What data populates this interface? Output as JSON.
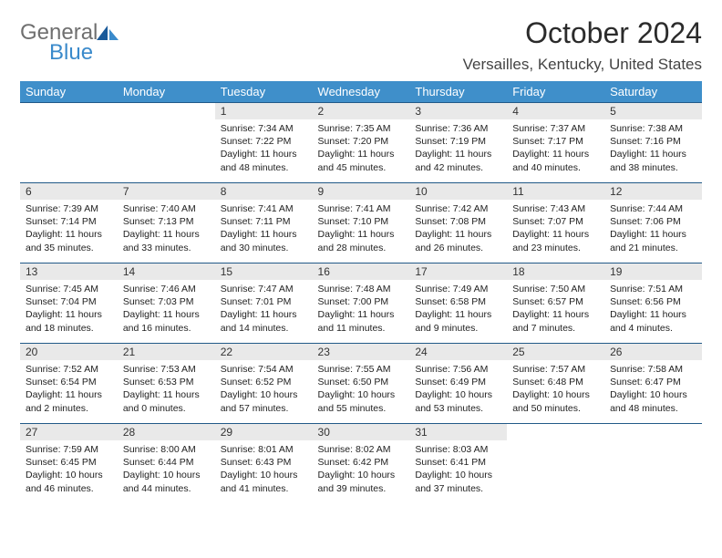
{
  "logo": {
    "general": "General",
    "blue": "Blue"
  },
  "title": "October 2024",
  "location": "Versailles, Kentucky, United States",
  "colors": {
    "header_bg": "#3f8fca",
    "header_text": "#ffffff",
    "row_border": "#225a88",
    "daynum_bg": "#e9e9e9",
    "logo_gray": "#6f6f6f",
    "logo_blue": "#3a8acb",
    "page_bg": "#ffffff",
    "body_text": "#222222"
  },
  "dayHeaders": [
    "Sunday",
    "Monday",
    "Tuesday",
    "Wednesday",
    "Thursday",
    "Friday",
    "Saturday"
  ],
  "weeks": [
    [
      {
        "n": "",
        "lines": []
      },
      {
        "n": "",
        "lines": []
      },
      {
        "n": "1",
        "lines": [
          "Sunrise: 7:34 AM",
          "Sunset: 7:22 PM",
          "Daylight: 11 hours",
          "and 48 minutes."
        ]
      },
      {
        "n": "2",
        "lines": [
          "Sunrise: 7:35 AM",
          "Sunset: 7:20 PM",
          "Daylight: 11 hours",
          "and 45 minutes."
        ]
      },
      {
        "n": "3",
        "lines": [
          "Sunrise: 7:36 AM",
          "Sunset: 7:19 PM",
          "Daylight: 11 hours",
          "and 42 minutes."
        ]
      },
      {
        "n": "4",
        "lines": [
          "Sunrise: 7:37 AM",
          "Sunset: 7:17 PM",
          "Daylight: 11 hours",
          "and 40 minutes."
        ]
      },
      {
        "n": "5",
        "lines": [
          "Sunrise: 7:38 AM",
          "Sunset: 7:16 PM",
          "Daylight: 11 hours",
          "and 38 minutes."
        ]
      }
    ],
    [
      {
        "n": "6",
        "lines": [
          "Sunrise: 7:39 AM",
          "Sunset: 7:14 PM",
          "Daylight: 11 hours",
          "and 35 minutes."
        ]
      },
      {
        "n": "7",
        "lines": [
          "Sunrise: 7:40 AM",
          "Sunset: 7:13 PM",
          "Daylight: 11 hours",
          "and 33 minutes."
        ]
      },
      {
        "n": "8",
        "lines": [
          "Sunrise: 7:41 AM",
          "Sunset: 7:11 PM",
          "Daylight: 11 hours",
          "and 30 minutes."
        ]
      },
      {
        "n": "9",
        "lines": [
          "Sunrise: 7:41 AM",
          "Sunset: 7:10 PM",
          "Daylight: 11 hours",
          "and 28 minutes."
        ]
      },
      {
        "n": "10",
        "lines": [
          "Sunrise: 7:42 AM",
          "Sunset: 7:08 PM",
          "Daylight: 11 hours",
          "and 26 minutes."
        ]
      },
      {
        "n": "11",
        "lines": [
          "Sunrise: 7:43 AM",
          "Sunset: 7:07 PM",
          "Daylight: 11 hours",
          "and 23 minutes."
        ]
      },
      {
        "n": "12",
        "lines": [
          "Sunrise: 7:44 AM",
          "Sunset: 7:06 PM",
          "Daylight: 11 hours",
          "and 21 minutes."
        ]
      }
    ],
    [
      {
        "n": "13",
        "lines": [
          "Sunrise: 7:45 AM",
          "Sunset: 7:04 PM",
          "Daylight: 11 hours",
          "and 18 minutes."
        ]
      },
      {
        "n": "14",
        "lines": [
          "Sunrise: 7:46 AM",
          "Sunset: 7:03 PM",
          "Daylight: 11 hours",
          "and 16 minutes."
        ]
      },
      {
        "n": "15",
        "lines": [
          "Sunrise: 7:47 AM",
          "Sunset: 7:01 PM",
          "Daylight: 11 hours",
          "and 14 minutes."
        ]
      },
      {
        "n": "16",
        "lines": [
          "Sunrise: 7:48 AM",
          "Sunset: 7:00 PM",
          "Daylight: 11 hours",
          "and 11 minutes."
        ]
      },
      {
        "n": "17",
        "lines": [
          "Sunrise: 7:49 AM",
          "Sunset: 6:58 PM",
          "Daylight: 11 hours",
          "and 9 minutes."
        ]
      },
      {
        "n": "18",
        "lines": [
          "Sunrise: 7:50 AM",
          "Sunset: 6:57 PM",
          "Daylight: 11 hours",
          "and 7 minutes."
        ]
      },
      {
        "n": "19",
        "lines": [
          "Sunrise: 7:51 AM",
          "Sunset: 6:56 PM",
          "Daylight: 11 hours",
          "and 4 minutes."
        ]
      }
    ],
    [
      {
        "n": "20",
        "lines": [
          "Sunrise: 7:52 AM",
          "Sunset: 6:54 PM",
          "Daylight: 11 hours",
          "and 2 minutes."
        ]
      },
      {
        "n": "21",
        "lines": [
          "Sunrise: 7:53 AM",
          "Sunset: 6:53 PM",
          "Daylight: 11 hours",
          "and 0 minutes."
        ]
      },
      {
        "n": "22",
        "lines": [
          "Sunrise: 7:54 AM",
          "Sunset: 6:52 PM",
          "Daylight: 10 hours",
          "and 57 minutes."
        ]
      },
      {
        "n": "23",
        "lines": [
          "Sunrise: 7:55 AM",
          "Sunset: 6:50 PM",
          "Daylight: 10 hours",
          "and 55 minutes."
        ]
      },
      {
        "n": "24",
        "lines": [
          "Sunrise: 7:56 AM",
          "Sunset: 6:49 PM",
          "Daylight: 10 hours",
          "and 53 minutes."
        ]
      },
      {
        "n": "25",
        "lines": [
          "Sunrise: 7:57 AM",
          "Sunset: 6:48 PM",
          "Daylight: 10 hours",
          "and 50 minutes."
        ]
      },
      {
        "n": "26",
        "lines": [
          "Sunrise: 7:58 AM",
          "Sunset: 6:47 PM",
          "Daylight: 10 hours",
          "and 48 minutes."
        ]
      }
    ],
    [
      {
        "n": "27",
        "lines": [
          "Sunrise: 7:59 AM",
          "Sunset: 6:45 PM",
          "Daylight: 10 hours",
          "and 46 minutes."
        ]
      },
      {
        "n": "28",
        "lines": [
          "Sunrise: 8:00 AM",
          "Sunset: 6:44 PM",
          "Daylight: 10 hours",
          "and 44 minutes."
        ]
      },
      {
        "n": "29",
        "lines": [
          "Sunrise: 8:01 AM",
          "Sunset: 6:43 PM",
          "Daylight: 10 hours",
          "and 41 minutes."
        ]
      },
      {
        "n": "30",
        "lines": [
          "Sunrise: 8:02 AM",
          "Sunset: 6:42 PM",
          "Daylight: 10 hours",
          "and 39 minutes."
        ]
      },
      {
        "n": "31",
        "lines": [
          "Sunrise: 8:03 AM",
          "Sunset: 6:41 PM",
          "Daylight: 10 hours",
          "and 37 minutes."
        ]
      },
      {
        "n": "",
        "lines": []
      },
      {
        "n": "",
        "lines": []
      }
    ]
  ]
}
